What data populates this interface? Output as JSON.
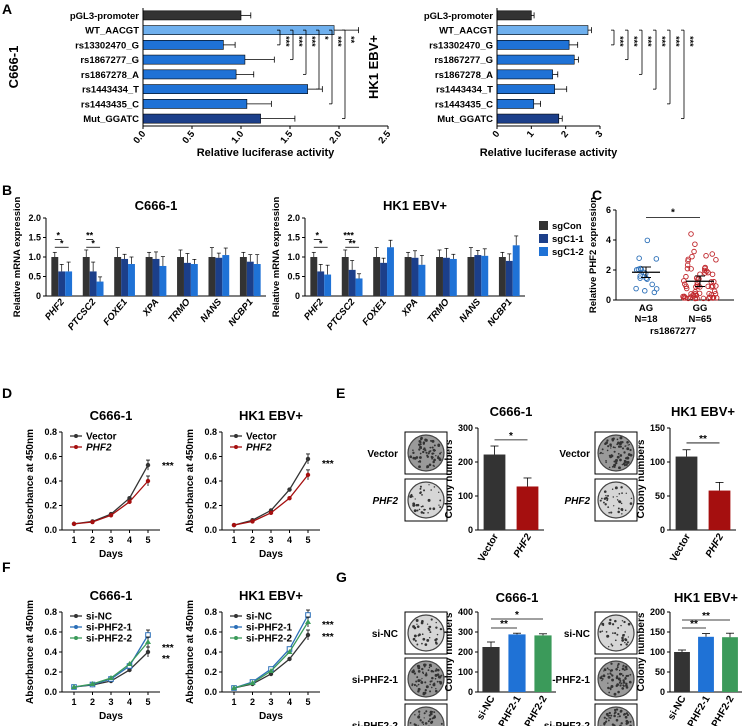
{
  "chart_data": [
    {
      "panel": "A",
      "type": "bar",
      "title": "C666-1",
      "xlabel": "Relative luciferase activity",
      "categories": [
        "pGL3-promoter",
        "WT_AACGT",
        "rs13302470_G",
        "rs1867277_G",
        "rs1867278_A",
        "rs1443434_T",
        "rs1443435_C",
        "Mut_GGATC"
      ],
      "values": [
        1.0,
        1.95,
        0.82,
        1.04,
        0.95,
        1.68,
        1.06,
        1.2
      ],
      "errors": [
        0.1,
        0.25,
        0.12,
        0.3,
        0.18,
        0.15,
        0.25,
        0.35
      ],
      "xlim": [
        0,
        2.5
      ],
      "xticks": [
        "0.0",
        "0.5",
        "1.0",
        "1.5",
        "2.0",
        "2.5"
      ],
      "sig": [
        "***",
        "***",
        "***",
        "*",
        "***",
        "**"
      ]
    },
    {
      "panel": "A",
      "type": "bar",
      "title": "HK1 EBV+",
      "xlabel": "Relative luciferase activity",
      "categories": [
        "pGL3-promoter",
        "WT_AACGT",
        "rs13302470_G",
        "rs1867277_G",
        "rs1867278_A",
        "rs1443434_T",
        "rs1443435_C",
        "Mut_GGATC"
      ],
      "values": [
        1.0,
        2.65,
        2.1,
        2.25,
        1.62,
        1.68,
        1.07,
        1.8
      ],
      "errors": [
        0.08,
        0.1,
        0.25,
        0.12,
        0.15,
        0.35,
        0.2,
        0.1
      ],
      "xlim": [
        0,
        3
      ],
      "xticks": [
        "0",
        "1",
        "2",
        "3"
      ],
      "sig": [
        "***",
        "***",
        "***",
        "***",
        "***",
        "***"
      ]
    },
    {
      "panel": "B",
      "type": "bar",
      "title": "C666-1",
      "ylabel": "Relative mRNA expression",
      "categories": [
        "PHF2",
        "PTCSC2",
        "FOXE1",
        "XPA",
        "TRMO",
        "NANS",
        "NCBP1"
      ],
      "series": [
        {
          "name": "sgCon",
          "values": [
            1.0,
            1.0,
            1.0,
            1.0,
            1.0,
            1.0,
            1.0
          ]
        },
        {
          "name": "sgC1-1",
          "values": [
            0.63,
            0.63,
            0.95,
            0.95,
            0.85,
            0.98,
            0.88
          ]
        },
        {
          "name": "sgC1-2",
          "values": [
            0.63,
            0.37,
            0.82,
            0.77,
            0.82,
            1.05,
            0.82
          ]
        }
      ],
      "ylim": [
        0,
        2.0
      ],
      "yticks": [
        "0",
        "0.5",
        "1.0",
        "1.5",
        "2.0"
      ],
      "sig": [
        "*",
        "*",
        "**",
        "*"
      ]
    },
    {
      "panel": "B",
      "type": "bar",
      "title": "HK1 EBV+",
      "ylabel": "Relative mRNA expression",
      "categories": [
        "PHF2",
        "PTCSC2",
        "FOXE1",
        "XPA",
        "TRMO",
        "NANS",
        "NCBP1"
      ],
      "series": [
        {
          "name": "sgCon",
          "values": [
            1.0,
            1.0,
            1.0,
            1.0,
            1.0,
            1.0,
            1.0
          ]
        },
        {
          "name": "sgC1-1",
          "values": [
            0.63,
            0.67,
            0.85,
            0.98,
            0.98,
            1.05,
            0.9
          ]
        },
        {
          "name": "sgC1-2",
          "values": [
            0.55,
            0.45,
            1.25,
            0.8,
            0.95,
            1.03,
            1.3
          ]
        }
      ],
      "ylim": [
        0,
        2.0
      ],
      "yticks": [
        "0",
        "0.5",
        "1.0",
        "1.5",
        "2.0"
      ],
      "sig": [
        "*",
        "*",
        "***",
        "**"
      ],
      "legend": [
        "sgCon",
        "sgC1-1",
        "sgC1-2"
      ]
    },
    {
      "panel": "C",
      "type": "scatter",
      "ylabel": "Relative PHF2 expression",
      "xlabel": "rs1867277",
      "categories": [
        "AG",
        "GG"
      ],
      "group_n": [
        "N=18",
        "N=65"
      ],
      "means": [
        1.85,
        1.25
      ],
      "ylim": [
        0,
        6
      ],
      "yticks": [
        "0",
        "2",
        "4",
        "6"
      ],
      "sig": "*"
    },
    {
      "panel": "D",
      "type": "line",
      "title": "C666-1",
      "ylabel": "Absorbance at 450nm",
      "xlabel": "Days",
      "x": [
        1,
        2,
        3,
        4,
        5
      ],
      "series": [
        {
          "name": "Vector",
          "values": [
            0.05,
            0.07,
            0.13,
            0.26,
            0.53
          ]
        },
        {
          "name": "PHF2",
          "values": [
            0.05,
            0.065,
            0.12,
            0.23,
            0.4
          ]
        }
      ],
      "ylim": [
        0,
        0.8
      ],
      "yticks": [
        "0.0",
        "0.2",
        "0.4",
        "0.6",
        "0.8"
      ],
      "sig": "***"
    },
    {
      "panel": "D",
      "type": "line",
      "title": "HK1 EBV+",
      "ylabel": "Absorbance at 450nm",
      "xlabel": "Days",
      "x": [
        1,
        2,
        3,
        4,
        5
      ],
      "series": [
        {
          "name": "Vector",
          "values": [
            0.04,
            0.08,
            0.16,
            0.33,
            0.58
          ]
        },
        {
          "name": "PHF2",
          "values": [
            0.04,
            0.07,
            0.14,
            0.26,
            0.45
          ]
        }
      ],
      "ylim": [
        0,
        0.8
      ],
      "yticks": [
        "0.0",
        "0.2",
        "0.4",
        "0.6",
        "0.8"
      ],
      "sig": "***"
    },
    {
      "panel": "E",
      "type": "bar",
      "title": "C666-1",
      "ylabel": "Colony numbers",
      "categories": [
        "Vector",
        "PHF2"
      ],
      "values": [
        222,
        128
      ],
      "errors": [
        25,
        25
      ],
      "ylim": [
        0,
        300
      ],
      "yticks": [
        "0",
        "100",
        "200",
        "300"
      ],
      "sig": "*"
    },
    {
      "panel": "E",
      "type": "bar",
      "title": "HK1 EBV+",
      "ylabel": "Colony numbers",
      "categories": [
        "Vector",
        "PHF2"
      ],
      "values": [
        108,
        58
      ],
      "errors": [
        10,
        12
      ],
      "ylim": [
        0,
        150
      ],
      "yticks": [
        "0",
        "50",
        "100",
        "150"
      ],
      "sig": "**"
    },
    {
      "panel": "F",
      "type": "line",
      "title": "C666-1",
      "ylabel": "Absorbance at 450nm",
      "xlabel": "Days",
      "x": [
        1,
        2,
        3,
        4,
        5
      ],
      "series": [
        {
          "name": "si-NC",
          "values": [
            0.05,
            0.07,
            0.11,
            0.22,
            0.4
          ]
        },
        {
          "name": "si-PHF2-1",
          "values": [
            0.05,
            0.075,
            0.13,
            0.26,
            0.57
          ]
        },
        {
          "name": "si-PHF2-2",
          "values": [
            0.05,
            0.08,
            0.14,
            0.28,
            0.5
          ]
        }
      ],
      "ylim": [
        0,
        0.8
      ],
      "yticks": [
        "0.0",
        "0.2",
        "0.4",
        "0.6",
        "0.8"
      ],
      "sig": [
        "***",
        "**"
      ]
    },
    {
      "panel": "F",
      "type": "line",
      "title": "HK1 EBV+",
      "ylabel": "Absorbance at 450nm",
      "xlabel": "Days",
      "x": [
        1,
        2,
        3,
        4,
        5
      ],
      "series": [
        {
          "name": "si-NC",
          "values": [
            0.04,
            0.08,
            0.18,
            0.33,
            0.57
          ]
        },
        {
          "name": "si-PHF2-1",
          "values": [
            0.04,
            0.1,
            0.23,
            0.43,
            0.77
          ]
        },
        {
          "name": "si-PHF2-2",
          "values": [
            0.04,
            0.09,
            0.21,
            0.4,
            0.7
          ]
        }
      ],
      "ylim": [
        0,
        0.8
      ],
      "yticks": [
        "0.0",
        "0.2",
        "0.4",
        "0.6",
        "0.8"
      ],
      "sig": [
        "***",
        "***"
      ]
    },
    {
      "panel": "G",
      "type": "bar",
      "title": "C666-1",
      "ylabel": "Colony numbers",
      "categories": [
        "si-NC",
        "si-PHF2-1",
        "si-PHF2-2"
      ],
      "values": [
        225,
        288,
        283
      ],
      "errors": [
        25,
        6,
        8
      ],
      "ylim": [
        0,
        400
      ],
      "yticks": [
        "0",
        "100",
        "200",
        "300",
        "400"
      ],
      "sig": [
        "**",
        "*"
      ]
    },
    {
      "panel": "G",
      "type": "bar",
      "title": "HK1 EBV+",
      "ylabel": "Colony numbers",
      "categories": [
        "si-NC",
        "si-PHF2-1",
        "si-PHF2-2"
      ],
      "values": [
        100,
        138,
        137
      ],
      "errors": [
        5,
        8,
        10
      ],
      "ylim": [
        0,
        200
      ],
      "yticks": [
        "0",
        "50",
        "100",
        "150",
        "200"
      ],
      "sig": [
        "**",
        "**"
      ]
    }
  ],
  "panels": [
    "A",
    "B",
    "C",
    "D",
    "E",
    "F",
    "G"
  ],
  "photo_labels": {
    "E": [
      "Vector",
      "PHF2"
    ],
    "G": [
      "si-NC",
      "si-PHF2-1",
      "si-PHF2-2"
    ]
  },
  "colors": {
    "dark": "#333333",
    "light_blue": "#6fb0ee",
    "blue": "#1f72d6",
    "navy": "#1c3f8a",
    "red": "#a50f0f",
    "green": "#3b9a5a",
    "open_blue": "#2b6fb8",
    "open_red": "#c0262b"
  }
}
